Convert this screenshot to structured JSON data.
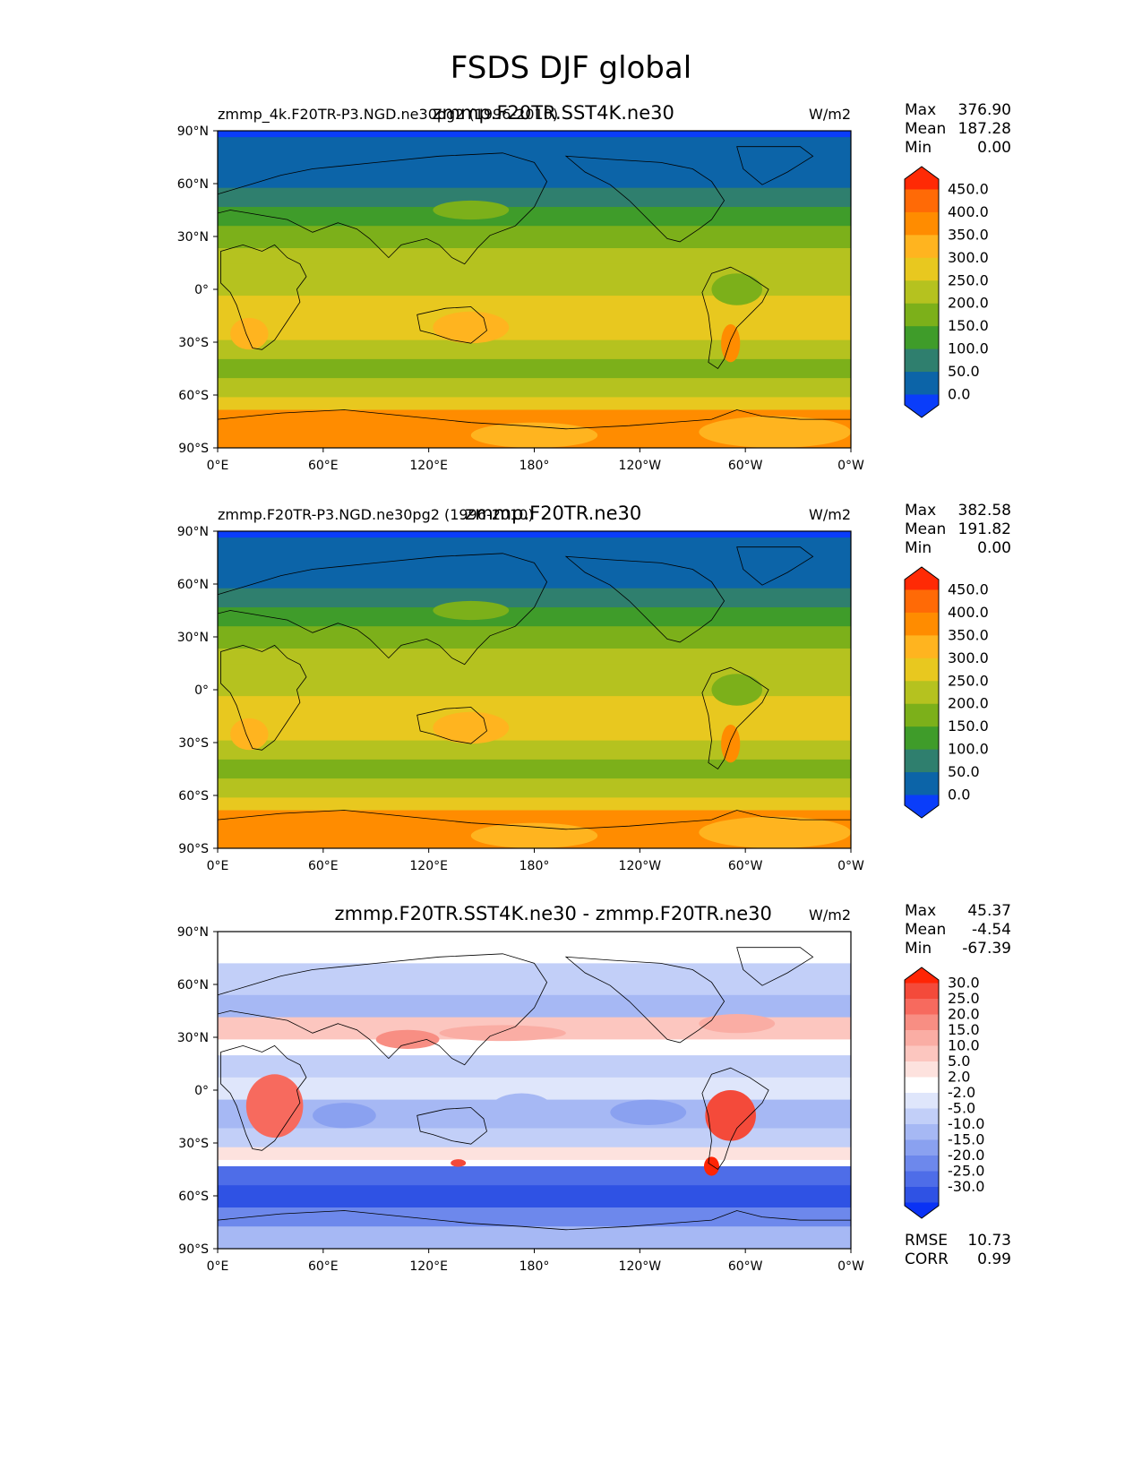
{
  "title": "FSDS DJF global",
  "panels": [
    {
      "file_label": "zmmp_4k.F20TR-P3.NGD.ne30pg2 (1996-2010)",
      "case_title": "zmmp.F20TR.SST4K.ne30",
      "units": "W/m2",
      "stats": [
        {
          "label": "Max",
          "value": "376.90"
        },
        {
          "label": "Mean",
          "value": "187.28"
        },
        {
          "label": "Min",
          "value": "0.00"
        }
      ],
      "colorbar": {
        "ticks": [
          "450.0",
          "400.0",
          "350.0",
          "300.0",
          "250.0",
          "200.0",
          "150.0",
          "100.0",
          "50.0",
          "0.0"
        ],
        "colors": [
          "#ff2a05",
          "#ff6a06",
          "#ff8c00",
          "#ffb41f",
          "#e8c81f",
          "#b5c21f",
          "#7cb01a",
          "#3f9c2a",
          "#2f7f6e",
          "#0c64a8",
          "#0a3dfa"
        ]
      },
      "extra_stats": []
    },
    {
      "file_label": "zmmp.F20TR-P3.NGD.ne30pg2 (1996-2010)",
      "case_title": "zmmp.F20TR.ne30",
      "units": "W/m2",
      "stats": [
        {
          "label": "Max",
          "value": "382.58"
        },
        {
          "label": "Mean",
          "value": "191.82"
        },
        {
          "label": "Min",
          "value": "0.00"
        }
      ],
      "colorbar": {
        "ticks": [
          "450.0",
          "400.0",
          "350.0",
          "300.0",
          "250.0",
          "200.0",
          "150.0",
          "100.0",
          "50.0",
          "0.0"
        ],
        "colors": [
          "#ff2a05",
          "#ff6a06",
          "#ff8c00",
          "#ffb41f",
          "#e8c81f",
          "#b5c21f",
          "#7cb01a",
          "#3f9c2a",
          "#2f7f6e",
          "#0c64a8",
          "#0a3dfa"
        ]
      },
      "extra_stats": []
    },
    {
      "file_label": "",
      "case_title": "zmmp.F20TR.SST4K.ne30 - zmmp.F20TR.ne30",
      "units": "W/m2",
      "stats": [
        {
          "label": "Max",
          "value": "45.37"
        },
        {
          "label": "Mean",
          "value": "-4.54"
        },
        {
          "label": "Min",
          "value": "-67.39"
        }
      ],
      "colorbar": {
        "ticks": [
          "30.0",
          "25.0",
          "20.0",
          "15.0",
          "10.0",
          "5.0",
          "2.0",
          "-2.0",
          "-5.0",
          "-10.0",
          "-15.0",
          "-20.0",
          "-25.0",
          "-30.0"
        ],
        "colors": [
          "#ff2505",
          "#f44a3a",
          "#f76a5e",
          "#f88e83",
          "#faada4",
          "#fcc6bf",
          "#fde2de",
          "#ffffff",
          "#dfe6fb",
          "#c2cff8",
          "#a6b8f4",
          "#8aa1f0",
          "#6d88ec",
          "#4e6de8",
          "#2f52e4",
          "#0a32f5"
        ]
      },
      "extra_stats": [
        {
          "label": "RMSE",
          "value": "10.73"
        },
        {
          "label": "CORR",
          "value": "0.99"
        }
      ]
    }
  ],
  "lat_ticks": [
    "90°N",
    "60°N",
    "30°N",
    "0°",
    "30°S",
    "60°S",
    "90°S"
  ],
  "lon_ticks": [
    "0°E",
    "60°E",
    "120°E",
    "180°",
    "120°W",
    "60°W",
    "0°W"
  ]
}
